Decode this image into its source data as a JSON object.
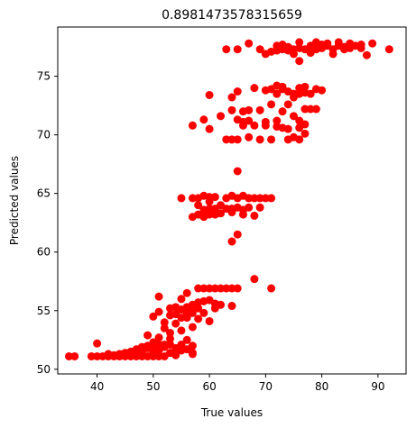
{
  "chart_data": {
    "type": "scatter",
    "title": "0.8981473578315659",
    "xlabel": "True values",
    "ylabel": "Predicted values",
    "xlim": [
      33,
      95
    ],
    "ylim": [
      49.6,
      79.2
    ],
    "xticks": [
      40,
      50,
      60,
      70,
      80,
      90
    ],
    "yticks": [
      50,
      55,
      60,
      65,
      70,
      75
    ],
    "grid": false,
    "marker_color": "#ff0000",
    "series": [
      {
        "points": [
          [
            35,
            51.1
          ],
          [
            36,
            51.1
          ],
          [
            39,
            51.1
          ],
          [
            40,
            51.1
          ],
          [
            40,
            52.2
          ],
          [
            41,
            51.1
          ],
          [
            42,
            51.3
          ],
          [
            42,
            51.1
          ],
          [
            43,
            51.1
          ],
          [
            43,
            51.2
          ],
          [
            44,
            51.1
          ],
          [
            44,
            51.3
          ],
          [
            45,
            51.1
          ],
          [
            45,
            51.4
          ],
          [
            46,
            51.1
          ],
          [
            46,
            51.5
          ],
          [
            47,
            51.2
          ],
          [
            47,
            51.7
          ],
          [
            47,
            51.1
          ],
          [
            48,
            51.9
          ],
          [
            48,
            51.1
          ],
          [
            48,
            51.5
          ],
          [
            49,
            52.9
          ],
          [
            49,
            51.1
          ],
          [
            49,
            51.8
          ],
          [
            49,
            52.0
          ],
          [
            50,
            51.4
          ],
          [
            50,
            52.3
          ],
          [
            50,
            51.1
          ],
          [
            50,
            52.0
          ],
          [
            50,
            54.5
          ],
          [
            51,
            52.7
          ],
          [
            51,
            51.1
          ],
          [
            51,
            51.6
          ],
          [
            51,
            54.9
          ],
          [
            51,
            52.1
          ],
          [
            51,
            56.2
          ],
          [
            52,
            51.9
          ],
          [
            52,
            53.5
          ],
          [
            52,
            52.1
          ],
          [
            52,
            51.1
          ],
          [
            52,
            54.0
          ],
          [
            53,
            52.1
          ],
          [
            53,
            53.1
          ],
          [
            53,
            55.2
          ],
          [
            53,
            51.4
          ],
          [
            53,
            54.6
          ],
          [
            53,
            52.6
          ],
          [
            54,
            51.8
          ],
          [
            54,
            54.7
          ],
          [
            54,
            51.2
          ],
          [
            54,
            55.3
          ],
          [
            54,
            53.9
          ],
          [
            55,
            52.1
          ],
          [
            55,
            53.3
          ],
          [
            55,
            55.1
          ],
          [
            55,
            54.4
          ],
          [
            55,
            56.0
          ],
          [
            55,
            51.6
          ],
          [
            56,
            51.7
          ],
          [
            56,
            55.3
          ],
          [
            56,
            52.5
          ],
          [
            56,
            54.4
          ],
          [
            56,
            56.5
          ],
          [
            56,
            54.8
          ],
          [
            57,
            51.4
          ],
          [
            57,
            55.5
          ],
          [
            57,
            52.0
          ],
          [
            57,
            53.6
          ],
          [
            57,
            55.2
          ],
          [
            57,
            51.3
          ],
          [
            57,
            54.8
          ],
          [
            58,
            56.9
          ],
          [
            58,
            55.2
          ],
          [
            58,
            54.3
          ],
          [
            58,
            55.7
          ],
          [
            59,
            56.9
          ],
          [
            59,
            54.8
          ],
          [
            59,
            55.8
          ],
          [
            60,
            56.9
          ],
          [
            60,
            55.9
          ],
          [
            60,
            54.1
          ],
          [
            61,
            55.2
          ],
          [
            61,
            56.9
          ],
          [
            61,
            55.6
          ],
          [
            62,
            56.9
          ],
          [
            62,
            55.5
          ],
          [
            63,
            56.9
          ],
          [
            64,
            56.9
          ],
          [
            64,
            55.4
          ],
          [
            65,
            56.9
          ],
          [
            68,
            57.7
          ],
          [
            71,
            56.9
          ],
          [
            55,
            64.6
          ],
          [
            57,
            64.6
          ],
          [
            57,
            63.0
          ],
          [
            58,
            64.6
          ],
          [
            58,
            63.2
          ],
          [
            58,
            64.0
          ],
          [
            59,
            64.8
          ],
          [
            59,
            63.6
          ],
          [
            59,
            63.0
          ],
          [
            60,
            64.7
          ],
          [
            60,
            63.7
          ],
          [
            60,
            63.2
          ],
          [
            60,
            64.3
          ],
          [
            61,
            64.7
          ],
          [
            61,
            63.2
          ],
          [
            61,
            63.7
          ],
          [
            62,
            64.0
          ],
          [
            62,
            63.3
          ],
          [
            63,
            64.6
          ],
          [
            63,
            63.7
          ],
          [
            64,
            64.8
          ],
          [
            64,
            63.7
          ],
          [
            64,
            63.4
          ],
          [
            64,
            60.9
          ],
          [
            65,
            64.6
          ],
          [
            65,
            63.8
          ],
          [
            65,
            61.5
          ],
          [
            65,
            66.9
          ],
          [
            66,
            64.8
          ],
          [
            66,
            63.6
          ],
          [
            66,
            63.2
          ],
          [
            67,
            64.6
          ],
          [
            67,
            63.8
          ],
          [
            68,
            64.6
          ],
          [
            68,
            63.1
          ],
          [
            69,
            64.6
          ],
          [
            69,
            63.8
          ],
          [
            70,
            64.6
          ],
          [
            71,
            64.6
          ],
          [
            57,
            70.8
          ],
          [
            59,
            71.3
          ],
          [
            60,
            73.4
          ],
          [
            60,
            70.5
          ],
          [
            62,
            71.6
          ],
          [
            63,
            69.6
          ],
          [
            64,
            73.2
          ],
          [
            64,
            69.6
          ],
          [
            64,
            72.1
          ],
          [
            65,
            69.6
          ],
          [
            65,
            73.7
          ],
          [
            65,
            71.3
          ],
          [
            66,
            71.1
          ],
          [
            66,
            72.0
          ],
          [
            66,
            70.8
          ],
          [
            67,
            72.1
          ],
          [
            67,
            71.2
          ],
          [
            67,
            69.8
          ],
          [
            68,
            74.0
          ],
          [
            68,
            70.8
          ],
          [
            69,
            72.1
          ],
          [
            69,
            69.6
          ],
          [
            70,
            73.8
          ],
          [
            70,
            71.1
          ],
          [
            70,
            70.8
          ],
          [
            71,
            73.9
          ],
          [
            71,
            72.6
          ],
          [
            71,
            69.6
          ],
          [
            72,
            74.2
          ],
          [
            72,
            73.5
          ],
          [
            72,
            71.2
          ],
          [
            72,
            70.7
          ],
          [
            73,
            73.9
          ],
          [
            73,
            74.1
          ],
          [
            73,
            72.0
          ],
          [
            73,
            70.6
          ],
          [
            74,
            73.7
          ],
          [
            74,
            72.6
          ],
          [
            74,
            70.5
          ],
          [
            74,
            69.6
          ],
          [
            75,
            73.5
          ],
          [
            75,
            73.2
          ],
          [
            75,
            71.6
          ],
          [
            75,
            69.8
          ],
          [
            76,
            74.0
          ],
          [
            76,
            73.5
          ],
          [
            76,
            71.2
          ],
          [
            76,
            70.6
          ],
          [
            76,
            69.6
          ],
          [
            77,
            74.1
          ],
          [
            77,
            73.6
          ],
          [
            77,
            72.2
          ],
          [
            77,
            70.9
          ],
          [
            77,
            70.1
          ],
          [
            78,
            73.5
          ],
          [
            78,
            72.2
          ],
          [
            79,
            73.9
          ],
          [
            79,
            72.2
          ],
          [
            80,
            73.8
          ],
          [
            63,
            77.3
          ],
          [
            65,
            77.3
          ],
          [
            67,
            77.8
          ],
          [
            69,
            77.3
          ],
          [
            70,
            76.9
          ],
          [
            71,
            77.1
          ],
          [
            72,
            77.6
          ],
          [
            72,
            77.2
          ],
          [
            73,
            77.7
          ],
          [
            73,
            77.3
          ],
          [
            74,
            77.5
          ],
          [
            74,
            77.2
          ],
          [
            75,
            77.3
          ],
          [
            75,
            76.9
          ],
          [
            76,
            77.9
          ],
          [
            76,
            77.4
          ],
          [
            76,
            76.3
          ],
          [
            77,
            77.3
          ],
          [
            78,
            77.6
          ],
          [
            78,
            77.0
          ],
          [
            79,
            77.9
          ],
          [
            79,
            77.3
          ],
          [
            80,
            77.7
          ],
          [
            80,
            77.4
          ],
          [
            81,
            77.8
          ],
          [
            81,
            77.6
          ],
          [
            82,
            77.3
          ],
          [
            82,
            76.9
          ],
          [
            83,
            77.9
          ],
          [
            83,
            77.6
          ],
          [
            84,
            77.5
          ],
          [
            84,
            77.3
          ],
          [
            85,
            77.4
          ],
          [
            85,
            77.8
          ],
          [
            86,
            77.6
          ],
          [
            87,
            77.7
          ],
          [
            87,
            77.4
          ],
          [
            88,
            76.8
          ],
          [
            89,
            77.8
          ],
          [
            92,
            77.3
          ]
        ]
      }
    ]
  }
}
